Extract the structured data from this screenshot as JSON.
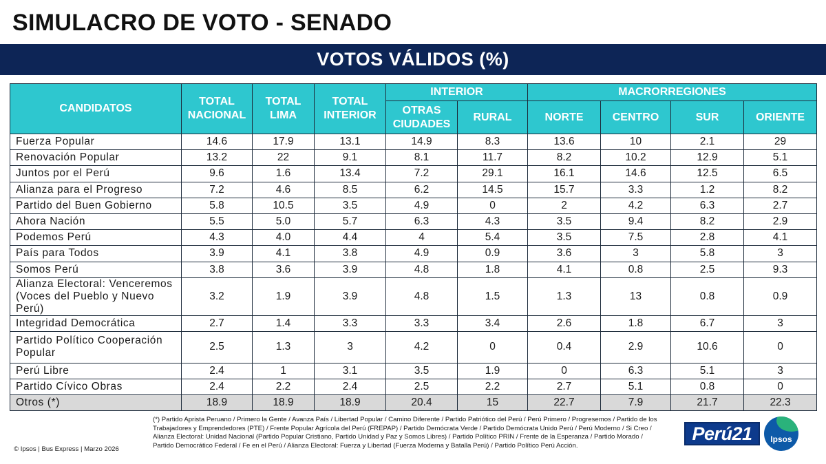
{
  "title": "SIMULACRO DE VOTO - SENADO",
  "subtitle": "VOTOS VÁLIDOS (%)",
  "headers": {
    "candidatos": "CANDIDATOS",
    "total_nacional": "TOTAL NACIONAL",
    "total_lima": "TOTAL LIMA",
    "total_interior": "TOTAL INTERIOR",
    "interior": "INTERIOR",
    "macrorregiones": "MACRORREGIONES",
    "otras_ciudades": "OTRAS CIUDADES",
    "rural": "RURAL",
    "norte": "NORTE",
    "centro": "CENTRO",
    "sur": "SUR",
    "oriente": "ORIENTE"
  },
  "rows": [
    {
      "name": "Fuerza Popular",
      "values": [
        "14.6",
        "17.9",
        "13.1",
        "14.9",
        "8.3",
        "13.6",
        "10",
        "2.1",
        "29"
      ]
    },
    {
      "name": "Renovación Popular",
      "values": [
        "13.2",
        "22",
        "9.1",
        "8.1",
        "11.7",
        "8.2",
        "10.2",
        "12.9",
        "5.1"
      ]
    },
    {
      "name": "Juntos por el Perú",
      "values": [
        "9.6",
        "1.6",
        "13.4",
        "7.2",
        "29.1",
        "16.1",
        "14.6",
        "12.5",
        "6.5"
      ]
    },
    {
      "name": "Alianza para el Progreso",
      "values": [
        "7.2",
        "4.6",
        "8.5",
        "6.2",
        "14.5",
        "15.7",
        "3.3",
        "1.2",
        "8.2"
      ]
    },
    {
      "name": "Partido del Buen Gobierno",
      "values": [
        "5.8",
        "10.5",
        "3.5",
        "4.9",
        "0",
        "2",
        "4.2",
        "6.3",
        "2.7"
      ]
    },
    {
      "name": "Ahora Nación",
      "values": [
        "5.5",
        "5.0",
        "5.7",
        "6.3",
        "4.3",
        "3.5",
        "9.4",
        "8.2",
        "2.9"
      ]
    },
    {
      "name": "Podemos Perú",
      "values": [
        "4.3",
        "4.0",
        "4.4",
        "4",
        "5.4",
        "3.5",
        "7.5",
        "2.8",
        "4.1"
      ]
    },
    {
      "name": "País para Todos",
      "values": [
        "3.9",
        "4.1",
        "3.8",
        "4.9",
        "0.9",
        "3.6",
        "3",
        "5.8",
        "3"
      ]
    },
    {
      "name": "Somos Perú",
      "values": [
        "3.8",
        "3.6",
        "3.9",
        "4.8",
        "1.8",
        "4.1",
        "0.8",
        "2.5",
        "9.3"
      ]
    },
    {
      "name": "Alianza Electoral: Venceremos (Voces del Pueblo y Nuevo Perú)",
      "values": [
        "3.2",
        "1.9",
        "3.9",
        "4.8",
        "1.5",
        "1.3",
        "13",
        "0.8",
        "0.9"
      ]
    },
    {
      "name": "Integridad Democrática",
      "values": [
        "2.7",
        "1.4",
        "3.3",
        "3.3",
        "3.4",
        "2.6",
        "1.8",
        "6.7",
        "3"
      ]
    },
    {
      "name": "Partido Político Cooperación Popular",
      "values": [
        "2.5",
        "1.3",
        "3",
        "4.2",
        "0",
        "0.4",
        "2.9",
        "10.6",
        "0"
      ]
    },
    {
      "name": "Perú Libre",
      "values": [
        "2.4",
        "1",
        "3.1",
        "3.5",
        "1.9",
        "0",
        "6.3",
        "5.1",
        "3"
      ]
    },
    {
      "name": "Partido Cívico Obras",
      "values": [
        "2.4",
        "2.2",
        "2.4",
        "2.5",
        "2.2",
        "2.7",
        "5.1",
        "0.8",
        "0"
      ]
    },
    {
      "name": "Otros (*)",
      "values": [
        "18.9",
        "18.9",
        "18.9",
        "20.4",
        "15",
        "22.7",
        "7.9",
        "21.7",
        "22.3"
      ]
    }
  ],
  "footnote": "(*) Partido Aprista Peruano / Primero la Gente / Avanza País / Libertad Popular / Camino Diferente / Partido Patriótico del Perú / Perú Primero / Progresemos / Partido de los Trabajadores y Emprendedores (PTE) / Frente Popular Agrícola del Perú (FREPAP) / Partido Demócrata Verde / Partido Demócrata Unido Perú / Perú Moderno / Si Creo / Alianza Electoral: Unidad Nacional (Partido Popular Cristiano, Partido Unidad y Paz y Somos Libres) / Partido Político PRIN / Frente de la Esperanza / Partido Morado / Partido Democrático Federal / Fe en el Perú / Alianza Electoral: Fuerza y Libertad (Fuerza Moderna y Batalla Perú) / Partido Político Perú Acción.",
  "credit": "© Ipsos | Bus Express | Marzo 2026",
  "logos": {
    "peru21": "Perú21",
    "ipsos": "Ipsos"
  },
  "colors": {
    "banner": "#0d2556",
    "header": "#2ec7cf",
    "otros_row": "#d9d9d9"
  }
}
